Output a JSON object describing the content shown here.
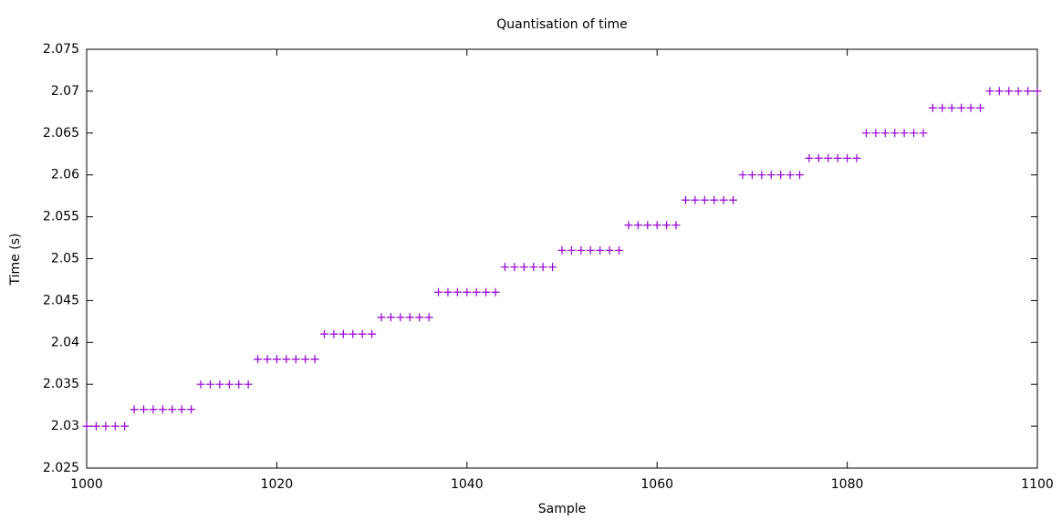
{
  "chart_data": {
    "type": "scatter",
    "title": "Quantisation of time",
    "x_label": "Sample",
    "y_label": "Time (s)",
    "color": "#9400d3",
    "x": [
      1000,
      1001,
      1002,
      1003,
      1004,
      1005,
      1006,
      1007,
      1008,
      1009,
      1010,
      1011,
      1012,
      1013,
      1014,
      1015,
      1016,
      1017,
      1018,
      1019,
      1020,
      1021,
      1022,
      1023,
      1024,
      1025,
      1026,
      1027,
      1028,
      1029,
      1030,
      1031,
      1032,
      1033,
      1034,
      1035,
      1036,
      1037,
      1038,
      1039,
      1040,
      1041,
      1042,
      1043,
      1044,
      1045,
      1046,
      1047,
      1048,
      1049,
      1050,
      1051,
      1052,
      1053,
      1054,
      1055,
      1056,
      1057,
      1058,
      1059,
      1060,
      1061,
      1062,
      1063,
      1064,
      1065,
      1066,
      1067,
      1068,
      1069,
      1070,
      1071,
      1072,
      1073,
      1074,
      1075,
      1076,
      1077,
      1078,
      1079,
      1080,
      1081,
      1082,
      1083,
      1084,
      1085,
      1086,
      1087,
      1088,
      1089,
      1090,
      1091,
      1092,
      1093,
      1094,
      1095,
      1096,
      1097,
      1098,
      1099,
      1100
    ],
    "values": [
      2.03,
      2.03,
      2.03,
      2.03,
      2.03,
      2.032,
      2.032,
      2.032,
      2.032,
      2.032,
      2.032,
      2.032,
      2.035,
      2.035,
      2.035,
      2.035,
      2.035,
      2.035,
      2.038,
      2.038,
      2.038,
      2.038,
      2.038,
      2.038,
      2.038,
      2.041,
      2.041,
      2.041,
      2.041,
      2.041,
      2.041,
      2.043,
      2.043,
      2.043,
      2.043,
      2.043,
      2.043,
      2.046,
      2.046,
      2.046,
      2.046,
      2.046,
      2.046,
      2.046,
      2.049,
      2.049,
      2.049,
      2.049,
      2.049,
      2.049,
      2.051,
      2.051,
      2.051,
      2.051,
      2.051,
      2.051,
      2.051,
      2.054,
      2.054,
      2.054,
      2.054,
      2.054,
      2.054,
      2.057,
      2.057,
      2.057,
      2.057,
      2.057,
      2.057,
      2.06,
      2.06,
      2.06,
      2.06,
      2.06,
      2.06,
      2.06,
      2.062,
      2.062,
      2.062,
      2.062,
      2.062,
      2.062,
      2.065,
      2.065,
      2.065,
      2.065,
      2.065,
      2.065,
      2.065,
      2.068,
      2.068,
      2.068,
      2.068,
      2.068,
      2.068,
      2.07,
      2.07,
      2.07,
      2.07,
      2.07,
      2.07
    ],
    "xlim": [
      1000,
      1100
    ],
    "xticks": [
      1000,
      1020,
      1040,
      1060,
      1080,
      1100
    ],
    "ylim": [
      2.025,
      2.075
    ],
    "yticks": [
      2.025,
      2.03,
      2.035,
      2.04,
      2.045,
      2.05,
      2.055,
      2.06,
      2.065,
      2.07,
      2.075
    ]
  }
}
